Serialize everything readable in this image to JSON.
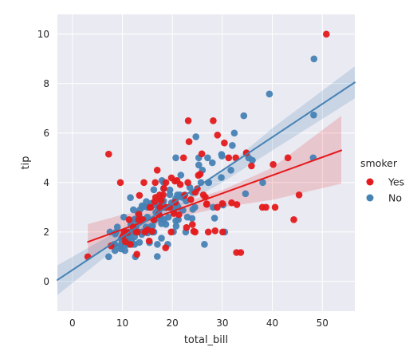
{
  "chart_data": {
    "type": "scatter",
    "xlabel": "total_bill",
    "ylabel": "tip",
    "xlim": [
      -3,
      56.5
    ],
    "ylim": [
      -1.2,
      10.8
    ],
    "xticks": [
      0,
      10,
      20,
      30,
      40,
      50
    ],
    "yticks": [
      0,
      2,
      4,
      6,
      8,
      10
    ],
    "grid": true,
    "legend": {
      "title": "smoker",
      "placement": "right"
    },
    "series": [
      {
        "name": "Yes",
        "color": "#e41a1c",
        "regression": {
          "x": [
            3.1,
            53.8
          ],
          "y": [
            1.6,
            5.3
          ]
        },
        "ci_band": {
          "x": [
            3.1,
            10,
            20,
            30,
            40,
            53.8
          ],
          "upper": [
            2.32,
            2.7,
            3.05,
            3.7,
            4.6,
            6.7
          ],
          "lower": [
            0.92,
            1.7,
            2.55,
            3.0,
            3.3,
            3.95
          ]
        },
        "points": [
          [
            3.07,
            1.0
          ],
          [
            7.25,
            5.15
          ],
          [
            7.74,
            1.44
          ],
          [
            9.6,
            4.0
          ],
          [
            10.07,
            1.83
          ],
          [
            10.33,
            2.0
          ],
          [
            10.59,
            1.61
          ],
          [
            11.02,
            1.98
          ],
          [
            11.59,
            1.5
          ],
          [
            12.74,
            2.01
          ],
          [
            12.9,
            1.1
          ],
          [
            13.28,
            2.72
          ],
          [
            13.27,
            2.5
          ],
          [
            13.42,
            3.48
          ],
          [
            14.31,
            4.0
          ],
          [
            14.52,
            2.0
          ],
          [
            15.01,
            2.09
          ],
          [
            15.36,
            1.64
          ],
          [
            15.69,
            3.0
          ],
          [
            15.98,
            2.03
          ],
          [
            16.27,
            2.5
          ],
          [
            16.47,
            3.23
          ],
          [
            16.58,
            4.0
          ],
          [
            16.66,
            3.4
          ],
          [
            17.29,
            2.71
          ],
          [
            17.47,
            3.5
          ],
          [
            17.51,
            3.0
          ],
          [
            18.15,
            3.5
          ],
          [
            18.29,
            3.76
          ],
          [
            18.64,
            1.36
          ],
          [
            18.71,
            4.0
          ],
          [
            19.44,
            3.0
          ],
          [
            19.77,
            2.0
          ],
          [
            20.29,
            2.75
          ],
          [
            20.49,
            4.06
          ],
          [
            20.92,
            4.08
          ],
          [
            21.58,
            3.92
          ],
          [
            22.42,
            3.48
          ],
          [
            22.82,
            2.18
          ],
          [
            23.1,
            4.0
          ],
          [
            23.33,
            5.65
          ],
          [
            23.68,
            3.31
          ],
          [
            24.27,
            2.03
          ],
          [
            24.55,
            2.0
          ],
          [
            24.59,
            3.61
          ],
          [
            25.0,
            3.75
          ],
          [
            25.21,
            4.29
          ],
          [
            25.89,
            5.16
          ],
          [
            26.59,
            3.41
          ],
          [
            26.86,
            3.14
          ],
          [
            27.18,
            2.0
          ],
          [
            28.17,
            6.5
          ],
          [
            28.55,
            2.05
          ],
          [
            28.97,
            3.0
          ],
          [
            30.06,
            2.0
          ],
          [
            30.4,
            5.6
          ],
          [
            31.27,
            5.0
          ],
          [
            32.68,
            5.0
          ],
          [
            32.9,
            3.11
          ],
          [
            34.81,
            5.2
          ],
          [
            38.01,
            3.0
          ],
          [
            38.73,
            3.0
          ],
          [
            40.55,
            3.0
          ],
          [
            43.11,
            5.0
          ],
          [
            44.3,
            2.5
          ],
          [
            45.35,
            3.5
          ],
          [
            50.81,
            10.0
          ],
          [
            12.16,
            2.2
          ],
          [
            14.07,
            2.5
          ],
          [
            16.97,
            4.5
          ],
          [
            19.81,
            4.19
          ],
          [
            22.23,
            5.0
          ],
          [
            23.17,
            6.5
          ],
          [
            25.56,
            4.34
          ],
          [
            26.88,
            3.12
          ],
          [
            29.03,
            5.92
          ],
          [
            31.85,
            3.18
          ],
          [
            33.68,
            1.17
          ],
          [
            35.83,
            4.67
          ],
          [
            40.17,
            4.73
          ],
          [
            32.83,
            1.17
          ],
          [
            13.0,
            2.0
          ],
          [
            15.53,
            3.0
          ],
          [
            18.78,
            3.0
          ],
          [
            11.35,
            2.5
          ],
          [
            20.6,
            3.2
          ],
          [
            17.78,
            3.27
          ],
          [
            21.3,
            2.7
          ],
          [
            24.0,
            2.3
          ],
          [
            26.2,
            3.5
          ],
          [
            30.0,
            3.15
          ]
        ]
      },
      {
        "name": "No",
        "color": "#4682b4",
        "regression": {
          "x": [
            -3,
            56.5
          ],
          "y": [
            0.06,
            8.05
          ]
        },
        "ci_band": {
          "x": [
            -3,
            10,
            20,
            30,
            40,
            56.5
          ],
          "upper": [
            0.65,
            2.15,
            3.2,
            4.5,
            6.2,
            8.7
          ],
          "lower": [
            -0.55,
            1.55,
            2.9,
            4.0,
            5.3,
            7.4
          ]
        },
        "points": [
          [
            7.25,
            1.0
          ],
          [
            7.51,
            2.0
          ],
          [
            8.35,
            1.5
          ],
          [
            8.51,
            1.25
          ],
          [
            8.52,
            1.48
          ],
          [
            8.58,
            1.92
          ],
          [
            8.77,
            2.0
          ],
          [
            9.55,
            1.45
          ],
          [
            9.68,
            1.32
          ],
          [
            9.78,
            1.73
          ],
          [
            9.94,
            1.56
          ],
          [
            10.27,
            1.71
          ],
          [
            10.29,
            2.6
          ],
          [
            10.33,
            1.67
          ],
          [
            10.34,
            1.66
          ],
          [
            10.51,
            1.25
          ],
          [
            10.63,
            2.0
          ],
          [
            10.65,
            1.5
          ],
          [
            11.17,
            1.5
          ],
          [
            11.24,
            1.76
          ],
          [
            11.38,
            2.0
          ],
          [
            11.61,
            3.39
          ],
          [
            11.69,
            2.31
          ],
          [
            11.87,
            1.63
          ],
          [
            12.02,
            1.97
          ],
          [
            12.03,
            1.5
          ],
          [
            12.43,
            1.8
          ],
          [
            12.46,
            1.5
          ],
          [
            12.54,
            2.5
          ],
          [
            12.6,
            1.0
          ],
          [
            12.66,
            2.5
          ],
          [
            12.69,
            2.0
          ],
          [
            12.76,
            2.23
          ],
          [
            13.0,
            2.0
          ],
          [
            13.03,
            2.0
          ],
          [
            13.13,
            2.0
          ],
          [
            13.16,
            2.75
          ],
          [
            13.39,
            2.61
          ],
          [
            13.42,
            1.58
          ],
          [
            13.81,
            2.0
          ],
          [
            13.94,
            3.06
          ],
          [
            14.0,
            3.0
          ],
          [
            14.15,
            2.0
          ],
          [
            14.26,
            2.5
          ],
          [
            14.48,
            2.0
          ],
          [
            14.73,
            2.2
          ],
          [
            14.78,
            3.23
          ],
          [
            14.83,
            3.02
          ],
          [
            15.04,
            1.96
          ],
          [
            15.06,
            3.0
          ],
          [
            15.38,
            3.0
          ],
          [
            15.42,
            1.57
          ],
          [
            15.48,
            2.02
          ],
          [
            15.77,
            2.23
          ],
          [
            15.81,
            3.16
          ],
          [
            15.95,
            2.0
          ],
          [
            16.0,
            2.0
          ],
          [
            16.21,
            2.0
          ],
          [
            16.29,
            3.71
          ],
          [
            16.31,
            2.0
          ],
          [
            16.45,
            2.47
          ],
          [
            16.93,
            3.07
          ],
          [
            16.99,
            1.01
          ],
          [
            17.07,
            3.0
          ],
          [
            17.26,
            2.74
          ],
          [
            17.46,
            2.54
          ],
          [
            17.59,
            2.64
          ],
          [
            17.81,
            2.34
          ],
          [
            17.82,
            1.75
          ],
          [
            17.92,
            4.08
          ],
          [
            18.24,
            3.76
          ],
          [
            18.26,
            3.25
          ],
          [
            18.28,
            4.0
          ],
          [
            18.29,
            3.0
          ],
          [
            18.35,
            2.5
          ],
          [
            18.43,
            3.0
          ],
          [
            18.69,
            2.31
          ],
          [
            18.78,
            3.0
          ],
          [
            19.08,
            1.5
          ],
          [
            19.49,
            3.51
          ],
          [
            19.65,
            3.0
          ],
          [
            19.82,
            3.18
          ],
          [
            20.08,
            3.15
          ],
          [
            20.23,
            2.01
          ],
          [
            20.27,
            2.83
          ],
          [
            20.29,
            3.21
          ],
          [
            20.45,
            3.0
          ],
          [
            20.65,
            3.35
          ],
          [
            20.69,
            2.45
          ],
          [
            20.69,
            5.0
          ],
          [
            20.76,
            2.24
          ],
          [
            21.01,
            3.5
          ],
          [
            21.16,
            3.0
          ],
          [
            21.5,
            3.5
          ],
          [
            21.7,
            4.3
          ],
          [
            22.12,
            2.88
          ],
          [
            22.49,
            3.5
          ],
          [
            22.67,
            2.0
          ],
          [
            22.75,
            3.25
          ],
          [
            23.95,
            2.55
          ],
          [
            24.06,
            3.6
          ],
          [
            24.08,
            2.92
          ],
          [
            24.71,
            5.85
          ],
          [
            25.28,
            5.0
          ],
          [
            25.29,
            4.71
          ],
          [
            25.71,
            4.0
          ],
          [
            26.41,
            1.5
          ],
          [
            26.88,
            3.12
          ],
          [
            27.05,
            5.0
          ],
          [
            27.2,
            4.0
          ],
          [
            27.28,
            4.0
          ],
          [
            28.15,
            3.0
          ],
          [
            28.44,
            2.56
          ],
          [
            29.8,
            4.2
          ],
          [
            29.85,
            5.14
          ],
          [
            29.93,
            5.07
          ],
          [
            30.14,
            3.09
          ],
          [
            30.46,
            2.0
          ],
          [
            31.71,
            4.5
          ],
          [
            32.4,
            6.0
          ],
          [
            34.3,
            6.7
          ],
          [
            34.63,
            3.55
          ],
          [
            34.83,
            5.17
          ],
          [
            35.26,
            5.0
          ],
          [
            38.07,
            4.0
          ],
          [
            39.42,
            7.58
          ],
          [
            48.17,
            5.0
          ],
          [
            48.27,
            6.73
          ],
          [
            48.33,
            9.0
          ],
          [
            17.78,
            3.27
          ],
          [
            16.04,
            2.24
          ],
          [
            12.48,
            2.52
          ],
          [
            14.07,
            2.0
          ],
          [
            9.0,
            2.2
          ],
          [
            11.0,
            1.8
          ],
          [
            13.5,
            2.9
          ],
          [
            15.3,
            2.1
          ],
          [
            16.7,
            2.8
          ],
          [
            18.0,
            3.2
          ],
          [
            19.2,
            2.6
          ],
          [
            20.9,
            3.1
          ],
          [
            22.0,
            3.4
          ],
          [
            23.5,
            3.8
          ],
          [
            24.5,
            3.0
          ],
          [
            26.0,
            4.5
          ],
          [
            28.0,
            4.8
          ],
          [
            32.0,
            5.5
          ],
          [
            36.0,
            4.9
          ],
          [
            21.2,
            2.5
          ],
          [
            17.0,
            1.5
          ],
          [
            15.0,
            2.6
          ],
          [
            13.9,
            1.9
          ],
          [
            12.2,
            2.9
          ],
          [
            19.5,
            3.7
          ],
          [
            23.0,
            2.6
          ]
        ]
      }
    ]
  }
}
